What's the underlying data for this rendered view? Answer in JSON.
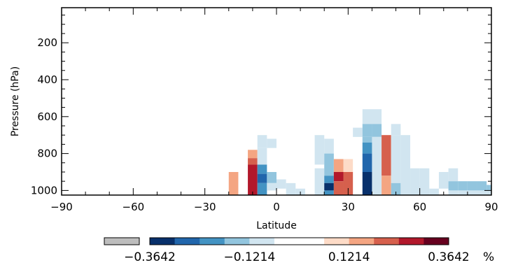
{
  "chart_data": {
    "type": "heatmap",
    "xlabel": "Latitude",
    "ylabel": "Pressure (hPa)",
    "xlim": [
      -90,
      90
    ],
    "ylim": [
      1025,
      10
    ],
    "x_ticks": [
      -90,
      -60,
      -30,
      0,
      30,
      60,
      90
    ],
    "x_tick_labels": [
      "−90",
      "−60",
      "−30",
      "0",
      "30",
      "60",
      "90"
    ],
    "y_ticks": [
      200,
      400,
      600,
      800,
      1000
    ],
    "y_tick_labels": [
      "200",
      "400",
      "600",
      "800",
      "1000"
    ],
    "colorbar": {
      "missing_color": "#bdbdbd",
      "levels": [
        -0.3642,
        -0.3035,
        -0.2428,
        -0.1821,
        -0.1214,
        -0.0607,
        0.0,
        0.0607,
        0.1214,
        0.1821,
        0.2428,
        0.3035,
        0.3642
      ],
      "colors": [
        "#08306b",
        "#2166ac",
        "#4393c3",
        "#92c5de",
        "#d1e5f0",
        "#ffffff",
        "#ffffff",
        "#fddbc7",
        "#f4a582",
        "#d6604d",
        "#b2182b",
        "#67001f"
      ],
      "tick_values": [
        -0.3642,
        -0.1214,
        0.1214,
        0.3642
      ],
      "tick_labels": [
        "−0.3642",
        "−0.1214",
        "0.1214",
        "0.3642"
      ],
      "unit": "%"
    },
    "cells": [
      {
        "lat": [
          -20,
          -16
        ],
        "p": [
          900,
          1025
        ],
        "v": 0.15
      },
      {
        "lat": [
          -12,
          -8
        ],
        "p": [
          780,
          825
        ],
        "v": 0.15
      },
      {
        "lat": [
          -12,
          -8
        ],
        "p": [
          825,
          860
        ],
        "v": 0.21
      },
      {
        "lat": [
          -12,
          -8
        ],
        "p": [
          860,
          1025
        ],
        "v": 0.28
      },
      {
        "lat": [
          -8,
          -4
        ],
        "p": [
          700,
          770
        ],
        "v": -0.09
      },
      {
        "lat": [
          -8,
          -4
        ],
        "p": [
          770,
          860
        ],
        "v": -0.09
      },
      {
        "lat": [
          -8,
          -4
        ],
        "p": [
          860,
          910
        ],
        "v": -0.21
      },
      {
        "lat": [
          -8,
          -4
        ],
        "p": [
          910,
          960
        ],
        "v": -0.26
      },
      {
        "lat": [
          -8,
          -4
        ],
        "p": [
          960,
          1025
        ],
        "v": -0.21
      },
      {
        "lat": [
          -4,
          0
        ],
        "p": [
          720,
          770
        ],
        "v": -0.09
      },
      {
        "lat": [
          -4,
          0
        ],
        "p": [
          900,
          960
        ],
        "v": -0.15
      },
      {
        "lat": [
          -4,
          0
        ],
        "p": [
          960,
          1000
        ],
        "v": -0.09
      },
      {
        "lat": [
          0,
          4
        ],
        "p": [
          940,
          990
        ],
        "v": -0.09
      },
      {
        "lat": [
          4,
          8
        ],
        "p": [
          960,
          1025
        ],
        "v": -0.09
      },
      {
        "lat": [
          8,
          12
        ],
        "p": [
          990,
          1025
        ],
        "v": -0.09
      },
      {
        "lat": [
          16,
          20
        ],
        "p": [
          700,
          860
        ],
        "v": -0.09
      },
      {
        "lat": [
          16,
          20
        ],
        "p": [
          880,
          1025
        ],
        "v": -0.09
      },
      {
        "lat": [
          20,
          24
        ],
        "p": [
          720,
          800
        ],
        "v": -0.09
      },
      {
        "lat": [
          20,
          24
        ],
        "p": [
          800,
          920
        ],
        "v": -0.15
      },
      {
        "lat": [
          20,
          24
        ],
        "p": [
          920,
          960
        ],
        "v": -0.21
      },
      {
        "lat": [
          20,
          24
        ],
        "p": [
          960,
          1000
        ],
        "v": -0.33
      },
      {
        "lat": [
          20,
          24
        ],
        "p": [
          1000,
          1025
        ],
        "v": -0.21
      },
      {
        "lat": [
          24,
          28
        ],
        "p": [
          830,
          900
        ],
        "v": 0.15
      },
      {
        "lat": [
          24,
          28
        ],
        "p": [
          900,
          950
        ],
        "v": 0.27
      },
      {
        "lat": [
          24,
          28
        ],
        "p": [
          950,
          1025
        ],
        "v": 0.21
      },
      {
        "lat": [
          28,
          32
        ],
        "p": [
          830,
          900
        ],
        "v": 0.09
      },
      {
        "lat": [
          28,
          32
        ],
        "p": [
          900,
          1025
        ],
        "v": 0.21
      },
      {
        "lat": [
          32,
          36
        ],
        "p": [
          660,
          710
        ],
        "v": -0.09
      },
      {
        "lat": [
          36,
          40
        ],
        "p": [
          560,
          640
        ],
        "v": -0.09
      },
      {
        "lat": [
          36,
          40
        ],
        "p": [
          640,
          710
        ],
        "v": -0.15
      },
      {
        "lat": [
          36,
          40
        ],
        "p": [
          710,
          740
        ],
        "v": -0.15
      },
      {
        "lat": [
          36,
          40
        ],
        "p": [
          740,
          800
        ],
        "v": -0.21
      },
      {
        "lat": [
          36,
          40
        ],
        "p": [
          800,
          900
        ],
        "v": -0.26
      },
      {
        "lat": [
          36,
          40
        ],
        "p": [
          900,
          1025
        ],
        "v": -0.33
      },
      {
        "lat": [
          40,
          44
        ],
        "p": [
          560,
          640
        ],
        "v": -0.09
      },
      {
        "lat": [
          40,
          44
        ],
        "p": [
          640,
          710
        ],
        "v": -0.15
      },
      {
        "lat": [
          40,
          44
        ],
        "p": [
          710,
          1025
        ],
        "v": -0.09
      },
      {
        "lat": [
          44,
          48
        ],
        "p": [
          700,
          920
        ],
        "v": 0.21
      },
      {
        "lat": [
          44,
          48
        ],
        "p": [
          920,
          1025
        ],
        "v": 0.15
      },
      {
        "lat": [
          48,
          52
        ],
        "p": [
          640,
          700
        ],
        "v": -0.09
      },
      {
        "lat": [
          48,
          52
        ],
        "p": [
          700,
          960
        ],
        "v": -0.09
      },
      {
        "lat": [
          48,
          52
        ],
        "p": [
          960,
          1025
        ],
        "v": -0.15
      },
      {
        "lat": [
          52,
          56
        ],
        "p": [
          700,
          1025
        ],
        "v": -0.09
      },
      {
        "lat": [
          56,
          60
        ],
        "p": [
          880,
          1025
        ],
        "v": -0.09
      },
      {
        "lat": [
          60,
          64
        ],
        "p": [
          880,
          1025
        ],
        "v": -0.09
      },
      {
        "lat": [
          64,
          68
        ],
        "p": [
          990,
          1025
        ],
        "v": -0.09
      },
      {
        "lat": [
          68,
          72
        ],
        "p": [
          900,
          990
        ],
        "v": -0.09
      },
      {
        "lat": [
          72,
          76
        ],
        "p": [
          880,
          950
        ],
        "v": -0.09
      },
      {
        "lat": [
          72,
          76
        ],
        "p": [
          950,
          1000
        ],
        "v": -0.15
      },
      {
        "lat": [
          72,
          76
        ],
        "p": [
          1000,
          1025
        ],
        "v": -0.09
      },
      {
        "lat": [
          76,
          80
        ],
        "p": [
          950,
          1000
        ],
        "v": -0.15
      },
      {
        "lat": [
          76,
          80
        ],
        "p": [
          1000,
          1025
        ],
        "v": -0.09
      },
      {
        "lat": [
          80,
          84
        ],
        "p": [
          950,
          1000
        ],
        "v": -0.15
      },
      {
        "lat": [
          80,
          84
        ],
        "p": [
          1000,
          1025
        ],
        "v": -0.09
      },
      {
        "lat": [
          84,
          88
        ],
        "p": [
          950,
          1000
        ],
        "v": -0.15
      },
      {
        "lat": [
          84,
          88
        ],
        "p": [
          1000,
          1025
        ],
        "v": -0.09
      },
      {
        "lat": [
          88,
          90
        ],
        "p": [
          970,
          1000
        ],
        "v": -0.15
      },
      {
        "lat": [
          88,
          90
        ],
        "p": [
          1000,
          1025
        ],
        "v": -0.09
      }
    ]
  }
}
